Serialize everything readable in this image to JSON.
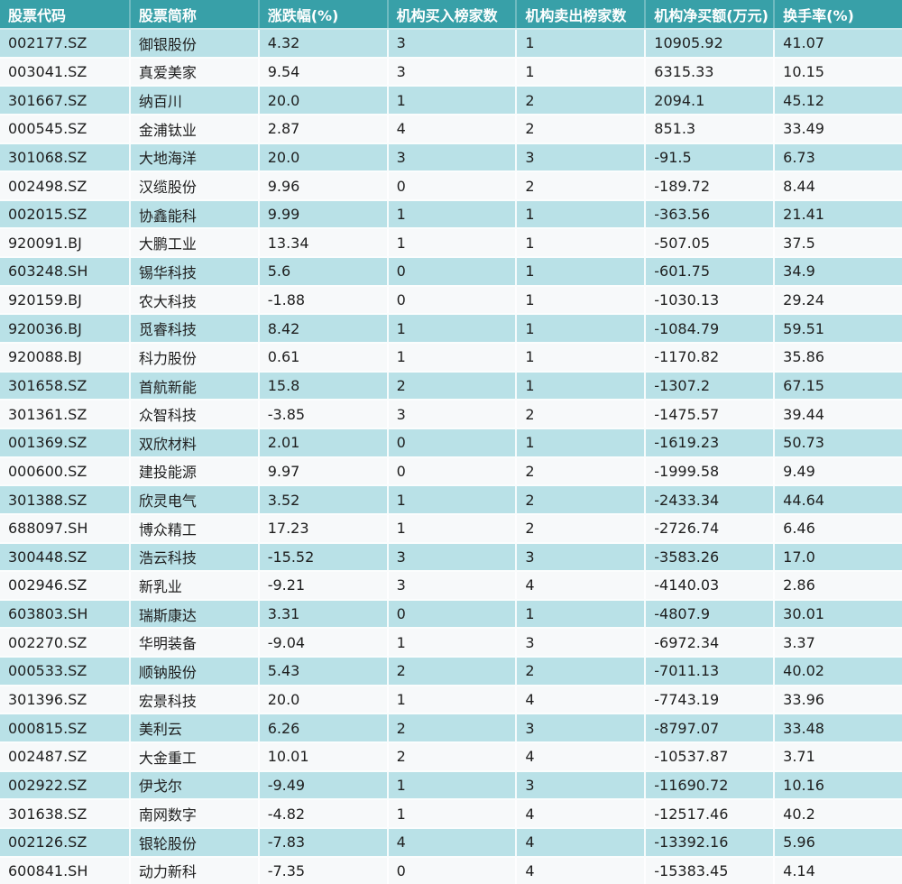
{
  "colors": {
    "header_bg": "#38a0a8",
    "row_teal": "#b9e1e7",
    "row_light": "#f7f9fa",
    "header_text": "#ffffff",
    "body_text": "#1e1e1e"
  },
  "chart_data": {
    "type": "table",
    "columns": [
      "股票代码",
      "股票简称",
      "涨跌幅(%)",
      "机构买入榜家数",
      "机构卖出榜家数",
      "机构净买额(万元)",
      "换手率(%)"
    ],
    "rows": [
      [
        "002177.SZ",
        "御银股份",
        "4.32",
        "3",
        "1",
        "10905.92",
        "41.07"
      ],
      [
        "003041.SZ",
        "真爱美家",
        "9.54",
        "3",
        "1",
        "6315.33",
        "10.15"
      ],
      [
        "301667.SZ",
        "纳百川",
        "20.0",
        "1",
        "2",
        "2094.1",
        "45.12"
      ],
      [
        "000545.SZ",
        "金浦钛业",
        "2.87",
        "4",
        "2",
        "851.3",
        "33.49"
      ],
      [
        "301068.SZ",
        "大地海洋",
        "20.0",
        "3",
        "3",
        "-91.5",
        "6.73"
      ],
      [
        "002498.SZ",
        "汉缆股份",
        "9.96",
        "0",
        "2",
        "-189.72",
        "8.44"
      ],
      [
        "002015.SZ",
        "协鑫能科",
        "9.99",
        "1",
        "1",
        "-363.56",
        "21.41"
      ],
      [
        "920091.BJ",
        "大鹏工业",
        "13.34",
        "1",
        "1",
        "-507.05",
        "37.5"
      ],
      [
        "603248.SH",
        "锡华科技",
        "5.6",
        "0",
        "1",
        "-601.75",
        "34.9"
      ],
      [
        "920159.BJ",
        "农大科技",
        "-1.88",
        "0",
        "1",
        "-1030.13",
        "29.24"
      ],
      [
        "920036.BJ",
        "觅睿科技",
        "8.42",
        "1",
        "1",
        "-1084.79",
        "59.51"
      ],
      [
        "920088.BJ",
        "科力股份",
        "0.61",
        "1",
        "1",
        "-1170.82",
        "35.86"
      ],
      [
        "301658.SZ",
        "首航新能",
        "15.8",
        "2",
        "1",
        "-1307.2",
        "67.15"
      ],
      [
        "301361.SZ",
        "众智科技",
        "-3.85",
        "3",
        "2",
        "-1475.57",
        "39.44"
      ],
      [
        "001369.SZ",
        "双欣材料",
        "2.01",
        "0",
        "1",
        "-1619.23",
        "50.73"
      ],
      [
        "000600.SZ",
        "建投能源",
        "9.97",
        "0",
        "2",
        "-1999.58",
        "9.49"
      ],
      [
        "301388.SZ",
        "欣灵电气",
        "3.52",
        "1",
        "2",
        "-2433.34",
        "44.64"
      ],
      [
        "688097.SH",
        "博众精工",
        "17.23",
        "1",
        "2",
        "-2726.74",
        "6.46"
      ],
      [
        "300448.SZ",
        "浩云科技",
        "-15.52",
        "3",
        "3",
        "-3583.26",
        "17.0"
      ],
      [
        "002946.SZ",
        "新乳业",
        "-9.21",
        "3",
        "4",
        "-4140.03",
        "2.86"
      ],
      [
        "603803.SH",
        "瑞斯康达",
        "3.31",
        "0",
        "1",
        "-4807.9",
        "30.01"
      ],
      [
        "002270.SZ",
        "华明装备",
        "-9.04",
        "1",
        "3",
        "-6972.34",
        "3.37"
      ],
      [
        "000533.SZ",
        "顺钠股份",
        "5.43",
        "2",
        "2",
        "-7011.13",
        "40.02"
      ],
      [
        "301396.SZ",
        "宏景科技",
        "20.0",
        "1",
        "4",
        "-7743.19",
        "33.96"
      ],
      [
        "000815.SZ",
        "美利云",
        "6.26",
        "2",
        "3",
        "-8797.07",
        "33.48"
      ],
      [
        "002487.SZ",
        "大金重工",
        "10.01",
        "2",
        "4",
        "-10537.87",
        "3.71"
      ],
      [
        "002922.SZ",
        "伊戈尔",
        "-9.49",
        "1",
        "3",
        "-11690.72",
        "10.16"
      ],
      [
        "301638.SZ",
        "南网数字",
        "-4.82",
        "1",
        "4",
        "-12517.46",
        "40.2"
      ],
      [
        "002126.SZ",
        "银轮股份",
        "-7.83",
        "4",
        "4",
        "-13392.16",
        "5.96"
      ],
      [
        "600841.SH",
        "动力新科",
        "-7.35",
        "0",
        "4",
        "-15383.45",
        "4.14"
      ]
    ]
  }
}
